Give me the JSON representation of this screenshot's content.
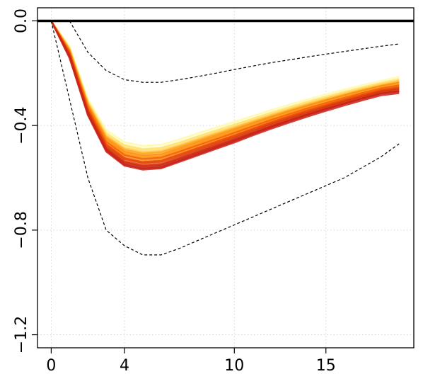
{
  "chart_data": {
    "type": "line",
    "title": "",
    "xlabel": "",
    "ylabel": "",
    "xlim": [
      -0.75,
      19.8
    ],
    "ylim": [
      -1.25,
      0.05
    ],
    "x_ticks": [
      0,
      4,
      10,
      15
    ],
    "x_tick_labels": [
      "0",
      "4",
      "10",
      "15"
    ],
    "y_ticks": [
      0.0,
      -0.4,
      -0.8,
      -1.2
    ],
    "y_tick_labels": [
      "0.0",
      "−0.4",
      "−0.8",
      "−1.2"
    ],
    "grid": true,
    "legend": "none",
    "zero_line": 0,
    "x": [
      0,
      1,
      2,
      3,
      4,
      5,
      6,
      7,
      8,
      9,
      10,
      11,
      12,
      13,
      14,
      15,
      16,
      17,
      18,
      19
    ],
    "bands": [
      {
        "name": "upper",
        "style": "dashed",
        "x": [
          1,
          2,
          3,
          4,
          5,
          6,
          7,
          8,
          9,
          10,
          11,
          12,
          13,
          14,
          15,
          16,
          17,
          18,
          19
        ],
        "values": [
          0.0,
          -0.12,
          -0.19,
          -0.225,
          -0.235,
          -0.235,
          -0.225,
          -0.213,
          -0.2,
          -0.186,
          -0.173,
          -0.16,
          -0.149,
          -0.138,
          -0.127,
          -0.117,
          -0.107,
          -0.097,
          -0.088
        ]
      },
      {
        "name": "lower",
        "style": "dashed",
        "x": [
          0,
          1,
          2,
          3,
          4,
          5,
          6,
          7,
          8,
          9,
          10,
          11,
          12,
          13,
          14,
          15,
          16,
          17,
          18,
          19
        ],
        "values": [
          0.0,
          -0.3,
          -0.6,
          -0.8,
          -0.86,
          -0.895,
          -0.895,
          -0.87,
          -0.84,
          -0.81,
          -0.78,
          -0.75,
          -0.72,
          -0.69,
          -0.66,
          -0.63,
          -0.6,
          -0.56,
          -0.52,
          -0.47
        ]
      }
    ],
    "series_palette": [
      "#fff9b0",
      "#ffe27a",
      "#ffc54a",
      "#ffa51f",
      "#ff8a10",
      "#f56a0a",
      "#e84c08",
      "#d63410",
      "#c8241a"
    ],
    "series_min": [
      0,
      -0.14,
      -0.36,
      -0.5,
      -0.555,
      -0.57,
      -0.565,
      -0.54,
      -0.515,
      -0.49,
      -0.465,
      -0.438,
      -0.412,
      -0.388,
      -0.365,
      -0.343,
      -0.322,
      -0.302,
      -0.283,
      -0.275
    ],
    "series_max": [
      0,
      -0.1,
      -0.3,
      -0.42,
      -0.465,
      -0.48,
      -0.475,
      -0.455,
      -0.432,
      -0.41,
      -0.388,
      -0.366,
      -0.344,
      -0.323,
      -0.303,
      -0.284,
      -0.266,
      -0.249,
      -0.233,
      -0.217
    ]
  }
}
